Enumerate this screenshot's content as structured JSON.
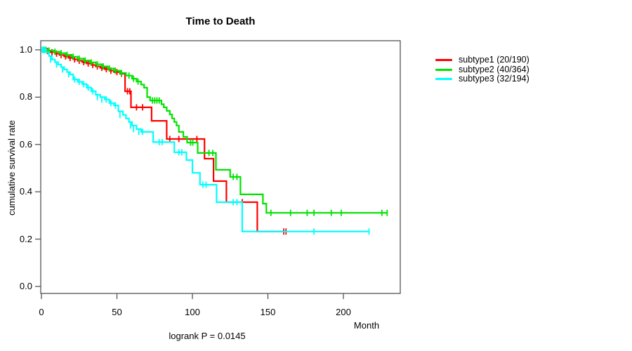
{
  "title": "Time to Death",
  "footer": "logrank P = 0.0145",
  "axes": {
    "x": {
      "label": "Month",
      "ticks": [
        0,
        50,
        100,
        150,
        200
      ],
      "tick_labels": [
        "0",
        "50",
        "100",
        "150",
        "200"
      ]
    },
    "y": {
      "label": "cumulative survival rate",
      "ticks": [
        0,
        0.2,
        0.4,
        0.6,
        0.8,
        1.0
      ],
      "tick_labels": [
        "0.0",
        "0.2",
        "0.4",
        "0.6",
        "0.8",
        "1.0"
      ]
    }
  },
  "legend": [
    {
      "label": "subtype1 (20/190)",
      "color": "#ff0000"
    },
    {
      "label": "subtype2 (40/364)",
      "color": "#00e300"
    },
    {
      "label": "subtype3 (32/194)",
      "color": "#00ffff"
    }
  ],
  "colors": {
    "axis": "#555555",
    "text": "#000000",
    "subtype1": "#ff0000",
    "subtype2": "#00e300",
    "subtype3": "#00ffff"
  },
  "chart_data": {
    "type": "line",
    "variant": "kaplan-meier-step",
    "title": "Time to Death",
    "xlabel": "Month",
    "ylabel": "cumulative survival rate",
    "xlim": [
      0,
      237
    ],
    "ylim": [
      0,
      1.04
    ],
    "grid": false,
    "legend_position": "right-outside",
    "annotation": "logrank P = 0.0145",
    "series": [
      {
        "name": "subtype1 (20/190)",
        "color": "#ff0000",
        "start": [
          0,
          1.0
        ],
        "end_month": 162,
        "steps": [
          [
            3,
            0.995
          ],
          [
            6,
            0.99
          ],
          [
            9,
            0.984
          ],
          [
            12,
            0.978
          ],
          [
            15,
            0.972
          ],
          [
            18,
            0.966
          ],
          [
            21,
            0.96
          ],
          [
            24,
            0.954
          ],
          [
            27,
            0.948
          ],
          [
            30,
            0.942
          ],
          [
            33,
            0.936
          ],
          [
            36,
            0.93
          ],
          [
            39,
            0.924
          ],
          [
            42,
            0.918
          ],
          [
            45,
            0.912
          ],
          [
            48,
            0.906
          ],
          [
            52,
            0.899
          ],
          [
            55.4,
            0.825
          ],
          [
            59.3,
            0.757
          ],
          [
            73,
            0.7
          ],
          [
            83,
            0.623
          ],
          [
            108,
            0.54
          ],
          [
            114,
            0.445
          ],
          [
            122.5,
            0.356
          ],
          [
            143,
            0.232
          ]
        ],
        "censors": [
          [
            1.5,
            1
          ],
          [
            2.5,
            1
          ],
          [
            4,
            0.995
          ],
          [
            7,
            0.99
          ],
          [
            10,
            0.984
          ],
          [
            13,
            0.978
          ],
          [
            16,
            0.972
          ],
          [
            19,
            0.966
          ],
          [
            22,
            0.96
          ],
          [
            25,
            0.954
          ],
          [
            28,
            0.948
          ],
          [
            31,
            0.942
          ],
          [
            34,
            0.936
          ],
          [
            37,
            0.93
          ],
          [
            40,
            0.924
          ],
          [
            43,
            0.918
          ],
          [
            46,
            0.912
          ],
          [
            50,
            0.906
          ],
          [
            53,
            0.899
          ],
          [
            57,
            0.825
          ],
          [
            58.5,
            0.825
          ],
          [
            63,
            0.757
          ],
          [
            67,
            0.757
          ],
          [
            85,
            0.623
          ],
          [
            91,
            0.623
          ],
          [
            103,
            0.623
          ],
          [
            133,
            0.356
          ],
          [
            160.5,
            0.232
          ],
          [
            162,
            0.232
          ]
        ]
      },
      {
        "name": "subtype2 (40/364)",
        "color": "#00e300",
        "start": [
          0,
          1.0
        ],
        "end_month": 229,
        "steps": [
          [
            4,
            0.997
          ],
          [
            8,
            0.992
          ],
          [
            12,
            0.986
          ],
          [
            16,
            0.979
          ],
          [
            20,
            0.971
          ],
          [
            24,
            0.963
          ],
          [
            28,
            0.955
          ],
          [
            32,
            0.947
          ],
          [
            36,
            0.939
          ],
          [
            40,
            0.93
          ],
          [
            44,
            0.921
          ],
          [
            48,
            0.912
          ],
          [
            52,
            0.902
          ],
          [
            56,
            0.891
          ],
          [
            60,
            0.878
          ],
          [
            63,
            0.866
          ],
          [
            66,
            0.853
          ],
          [
            68,
            0.84
          ],
          [
            70,
            0.8
          ],
          [
            72,
            0.786
          ],
          [
            79.5,
            0.77
          ],
          [
            81,
            0.757
          ],
          [
            83,
            0.742
          ],
          [
            85,
            0.727
          ],
          [
            86.5,
            0.71
          ],
          [
            88,
            0.695
          ],
          [
            89.5,
            0.68
          ],
          [
            91,
            0.653
          ],
          [
            94,
            0.632
          ],
          [
            96.5,
            0.608
          ],
          [
            103.5,
            0.564
          ],
          [
            115.6,
            0.493
          ],
          [
            125,
            0.463
          ],
          [
            131.8,
            0.389
          ],
          [
            146.7,
            0.35
          ],
          [
            149,
            0.311
          ]
        ],
        "censors": [
          [
            1,
            1
          ],
          [
            2,
            1
          ],
          [
            3,
            1
          ],
          [
            5,
            0.997
          ],
          [
            9,
            0.992
          ],
          [
            13,
            0.986
          ],
          [
            17,
            0.979
          ],
          [
            21,
            0.971
          ],
          [
            25,
            0.963
          ],
          [
            29,
            0.955
          ],
          [
            33,
            0.947
          ],
          [
            37,
            0.939
          ],
          [
            41,
            0.93
          ],
          [
            45,
            0.921
          ],
          [
            49,
            0.912
          ],
          [
            53,
            0.902
          ],
          [
            58,
            0.891
          ],
          [
            61,
            0.878
          ],
          [
            64,
            0.866
          ],
          [
            73.5,
            0.786
          ],
          [
            75,
            0.786
          ],
          [
            76.5,
            0.786
          ],
          [
            78,
            0.786
          ],
          [
            98.8,
            0.608
          ],
          [
            100.3,
            0.608
          ],
          [
            111,
            0.564
          ],
          [
            113.5,
            0.564
          ],
          [
            127,
            0.463
          ],
          [
            129.5,
            0.463
          ],
          [
            152,
            0.311
          ],
          [
            165,
            0.311
          ],
          [
            176,
            0.311
          ],
          [
            180.5,
            0.311
          ],
          [
            192,
            0.311
          ],
          [
            198.6,
            0.311
          ],
          [
            225.5,
            0.311
          ],
          [
            229,
            0.311
          ]
        ]
      },
      {
        "name": "subtype3 (32/194)",
        "color": "#00ffff",
        "start": [
          0,
          1.0
        ],
        "end_month": 217,
        "steps": [
          [
            3,
            0.99
          ],
          [
            5,
            0.974
          ],
          [
            7,
            0.959
          ],
          [
            9,
            0.948
          ],
          [
            11,
            0.938
          ],
          [
            13,
            0.927
          ],
          [
            15,
            0.917
          ],
          [
            17,
            0.906
          ],
          [
            19,
            0.896
          ],
          [
            21,
            0.875
          ],
          [
            24,
            0.865
          ],
          [
            27,
            0.855
          ],
          [
            30,
            0.84
          ],
          [
            33,
            0.825
          ],
          [
            36,
            0.81
          ],
          [
            39,
            0.8
          ],
          [
            42,
            0.79
          ],
          [
            45,
            0.775
          ],
          [
            48,
            0.765
          ],
          [
            51,
            0.74
          ],
          [
            54,
            0.725
          ],
          [
            56,
            0.71
          ],
          [
            58,
            0.695
          ],
          [
            60,
            0.68
          ],
          [
            63,
            0.665
          ],
          [
            66,
            0.653
          ],
          [
            74,
            0.61
          ],
          [
            88,
            0.567
          ],
          [
            96,
            0.534
          ],
          [
            100,
            0.48
          ],
          [
            105,
            0.43
          ],
          [
            116,
            0.356
          ],
          [
            133,
            0.232
          ]
        ],
        "censors": [
          [
            0.5,
            1
          ],
          [
            1.5,
            1
          ],
          [
            2.5,
            1
          ],
          [
            6,
            0.959
          ],
          [
            10,
            0.938
          ],
          [
            14,
            0.917
          ],
          [
            18,
            0.896
          ],
          [
            22,
            0.875
          ],
          [
            25,
            0.865
          ],
          [
            28,
            0.855
          ],
          [
            31,
            0.84
          ],
          [
            34,
            0.825
          ],
          [
            37,
            0.8
          ],
          [
            40,
            0.79
          ],
          [
            43,
            0.79
          ],
          [
            46,
            0.775
          ],
          [
            49,
            0.765
          ],
          [
            52,
            0.725
          ],
          [
            59,
            0.68
          ],
          [
            61,
            0.665
          ],
          [
            64.5,
            0.653
          ],
          [
            67,
            0.653
          ],
          [
            78,
            0.61
          ],
          [
            80,
            0.61
          ],
          [
            91,
            0.567
          ],
          [
            93,
            0.567
          ],
          [
            107,
            0.43
          ],
          [
            109,
            0.43
          ],
          [
            127,
            0.356
          ],
          [
            129.5,
            0.356
          ],
          [
            180.5,
            0.232
          ],
          [
            217,
            0.232
          ]
        ]
      }
    ]
  }
}
